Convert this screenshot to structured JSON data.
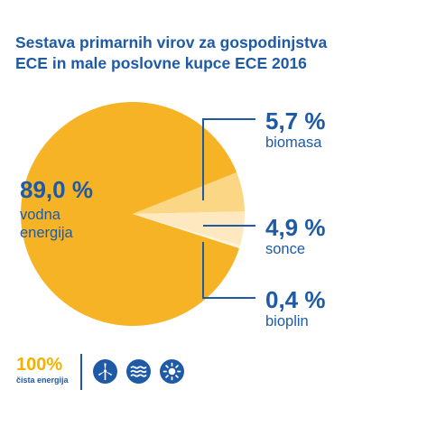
{
  "title_line1": "Sestava primarnih virov za gospodinjstva",
  "title_line2": "ECE in male poslovne kupce ECE 2016",
  "chart_data": {
    "type": "pie",
    "title": "Sestava primarnih virov za gospodinjstva ECE in male poslovne kupce ECE 2016",
    "slices": [
      {
        "label": "vodna energija",
        "value": 89.0,
        "display": "89,0 %",
        "color": "#f5b325"
      },
      {
        "label": "biomasa",
        "value": 5.7,
        "display": "5,7 %",
        "color": "#fbd785"
      },
      {
        "label": "sonce",
        "value": 4.9,
        "display": "4,9 %",
        "color": "#fde8c0"
      },
      {
        "label": "bioplin",
        "value": 0.4,
        "display": "0,4 %",
        "color": "#fef3dc"
      }
    ]
  },
  "labels": {
    "main_pct": "89,0 %",
    "main_line1": "vodna",
    "main_line2": "energija",
    "biomasa_pct": "5,7 %",
    "biomasa_label": "biomasa",
    "sonce_pct": "4,9 %",
    "sonce_label": "sonce",
    "bioplin_pct": "0,4 %",
    "bioplin_label": "bioplin"
  },
  "footer": {
    "percent": "100%",
    "subtitle": "čista energija",
    "icons": [
      "wind-turbine-icon",
      "water-waves-icon",
      "sun-icon"
    ]
  },
  "colors": {
    "brand_blue": "#1f5aa6",
    "brand_orange": "#f5b000"
  }
}
